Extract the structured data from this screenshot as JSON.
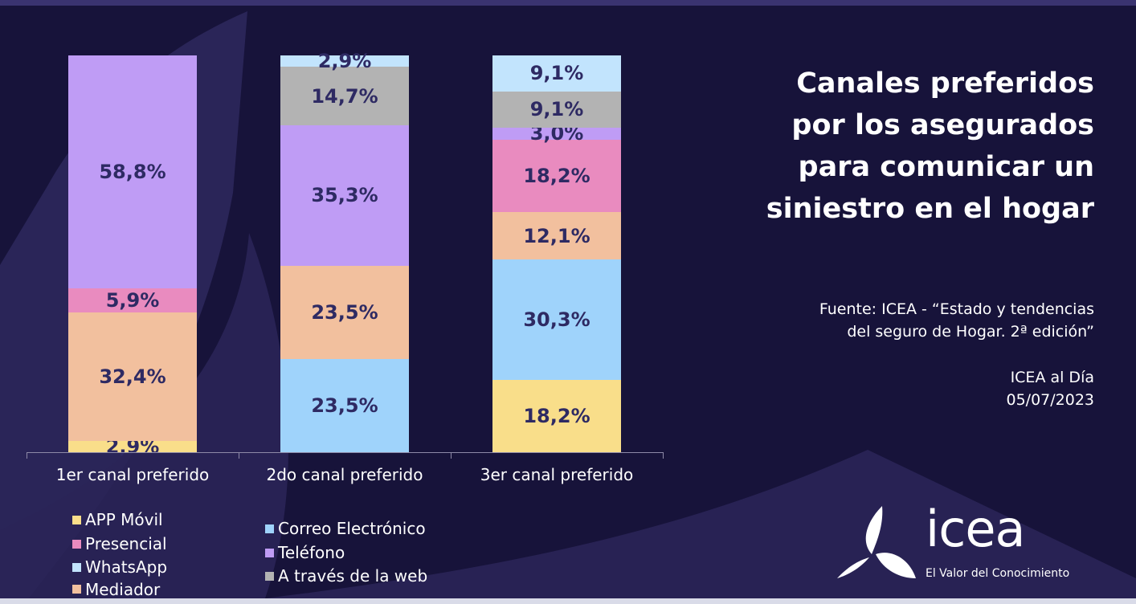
{
  "chart_data": {
    "type": "stacked-bar",
    "title": "Canales preferidos por los asegurados para comunicar un siniestro en el hogar",
    "categories": [
      "1er canal preferido",
      "2do canal preferido",
      "3er canal preferido"
    ],
    "ylim": [
      0,
      100
    ],
    "series": [
      {
        "name": "APP Móvil",
        "color": "#f9de8a",
        "values": [
          2.9,
          0,
          18.2
        ],
        "labels": [
          "2,9%",
          "",
          "18,2%"
        ]
      },
      {
        "name": "Correo Electrónico",
        "color": "#9fd3fb",
        "values": [
          0,
          23.5,
          30.3
        ],
        "labels": [
          "",
          "23,5%",
          "30,3%"
        ]
      },
      {
        "name": "Mediador",
        "color": "#f2c09e",
        "values": [
          32.4,
          23.5,
          12.1
        ],
        "labels": [
          "32,4%",
          "23,5%",
          "12,1%"
        ]
      },
      {
        "name": "Presencial",
        "color": "#e98bbf",
        "values": [
          5.9,
          0,
          18.2
        ],
        "labels": [
          "5,9%",
          "",
          "18,2%"
        ]
      },
      {
        "name": "Teléfono",
        "color": "#bf9cf5",
        "values": [
          58.8,
          35.3,
          3.0
        ],
        "labels": [
          "58,8%",
          "35,3%",
          "3,0%"
        ]
      },
      {
        "name": "A través de la web",
        "color": "#b3b3b3",
        "values": [
          0,
          14.7,
          9.1
        ],
        "labels": [
          "",
          "14,7%",
          "9,1%"
        ]
      },
      {
        "name": "WhatsApp",
        "color": "#c2e4fd",
        "values": [
          0,
          2.9,
          9.1
        ],
        "labels": [
          "",
          "2,9%",
          "9,1%"
        ]
      }
    ],
    "legend_left": [
      "APP Móvil",
      "Presencial",
      "WhatsApp",
      "Mediador"
    ],
    "legend_right": [
      "Correo Electrónico",
      "Teléfono",
      "A través de la web"
    ],
    "legend_placement": "bottom-left"
  },
  "title_lines": [
    "Canales preferidos",
    "por los asegurados",
    "para comunicar un",
    "siniestro en el hogar"
  ],
  "source_lines": [
    "Fuente: ICEA - “Estado y tendencias",
    "del seguro de Hogar. 2ª edición”"
  ],
  "publication": "ICEA al Día",
  "date": "05/07/2023",
  "logo": {
    "word": "icea",
    "tagline": "El Valor del Conocimiento"
  }
}
